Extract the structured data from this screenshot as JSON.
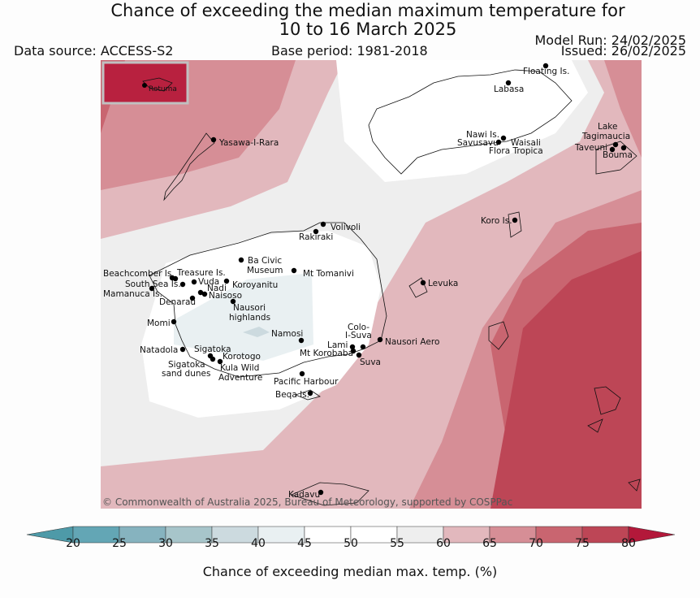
{
  "header": {
    "title_line1": "Chance of exceeding the median maximum temperature for",
    "title_line2": "10 to 16 March 2025",
    "data_source": "Data source: ACCESS-S2",
    "base_period": "Base period: 1981-2018",
    "model_run": "Model Run: 24/02/2025",
    "issued": "Issued: 26/02/2025"
  },
  "map": {
    "copyright": "© Commonwealth of Australia 2025, Bureau of Meteorology, supported by COSPPac",
    "inset_label": "Rotuma",
    "places": [
      "Floating Is.",
      "Labasa",
      "Nawi Is.",
      "Savusavu",
      "Waisali",
      "Flora Tropica",
      "Lake",
      "Tagimaucia",
      "Taveuni",
      "Bouma",
      "Yasawa-I-Rara",
      "Volivoli",
      "Rakiraki",
      "Koro Is.",
      "Ba Civic",
      "Museum",
      "Mt Tomanivi",
      "Beachcomber Is.",
      "Treasure Is.",
      "South Sea Is.",
      "Vuda",
      "Nadi",
      "Koroyanitu",
      "Mamanuca Is.",
      "Naisoso",
      "Denarau",
      "Nausori",
      "highlands",
      "Levuka",
      "Momi",
      "Namosi",
      "Colo-",
      "I-Suva",
      "Nausori Aero",
      "Lami",
      "Mt Korobaba",
      "Suva",
      "Natadola",
      "Sigatoka",
      "Korotogo",
      "Sigatoka",
      "sand dunes",
      "Kula Wild",
      "Adventure",
      "Pacific Harbour",
      "Beqa Is.",
      "Kadavu"
    ]
  },
  "colorbar": {
    "ticks": [
      "20",
      "25",
      "30",
      "35",
      "40",
      "45",
      "50",
      "55",
      "60",
      "65",
      "70",
      "75",
      "80"
    ],
    "colors": [
      "#63a6b5",
      "#86b3bf",
      "#a7c5ca",
      "#ccdadf",
      "#e9f0f2",
      "#ffffff",
      "#ffffff",
      "#eeeeee",
      "#e2b8bd",
      "#d68e96",
      "#c96570",
      "#bd4656"
    ],
    "under_color": "#4e9aa8",
    "over_color": "#b3183a",
    "label": "Chance of exceeding median max. temp. (%)"
  }
}
